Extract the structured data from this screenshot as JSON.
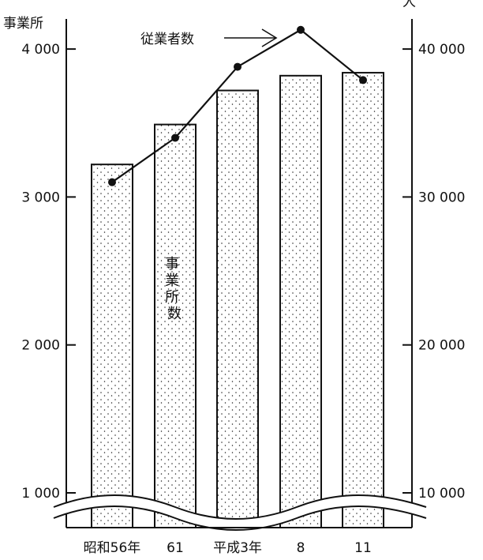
{
  "chart_data": {
    "type": "bar",
    "categories": [
      "昭和56年",
      "61",
      "平成3年",
      "8",
      "11"
    ],
    "left_axis": {
      "label": "事業所",
      "ticks": [
        1000,
        2000,
        3000,
        4000
      ],
      "tick_labels": [
        "1 000",
        "2 000",
        "3 000",
        "4 000"
      ],
      "range_shown": [
        900,
        4200
      ],
      "axis_break": true
    },
    "right_axis": {
      "label": "人",
      "ticks": [
        10000,
        20000,
        30000,
        40000
      ],
      "tick_labels": [
        "10 000",
        "20 000",
        "30 000",
        "40 000"
      ]
    },
    "series": [
      {
        "name": "事業所数",
        "kind": "bar",
        "axis": "left",
        "values": [
          3220,
          3490,
          3720,
          3820,
          3840
        ]
      },
      {
        "name": "従業者数",
        "kind": "line",
        "axis": "right",
        "values": [
          31000,
          34000,
          38800,
          41300,
          37900
        ]
      }
    ],
    "annotations": {
      "bar_label": "事業所数",
      "line_label": "従業者数"
    },
    "colors": {
      "ink": "#111111",
      "bar_fill": "#ffffff"
    }
  }
}
